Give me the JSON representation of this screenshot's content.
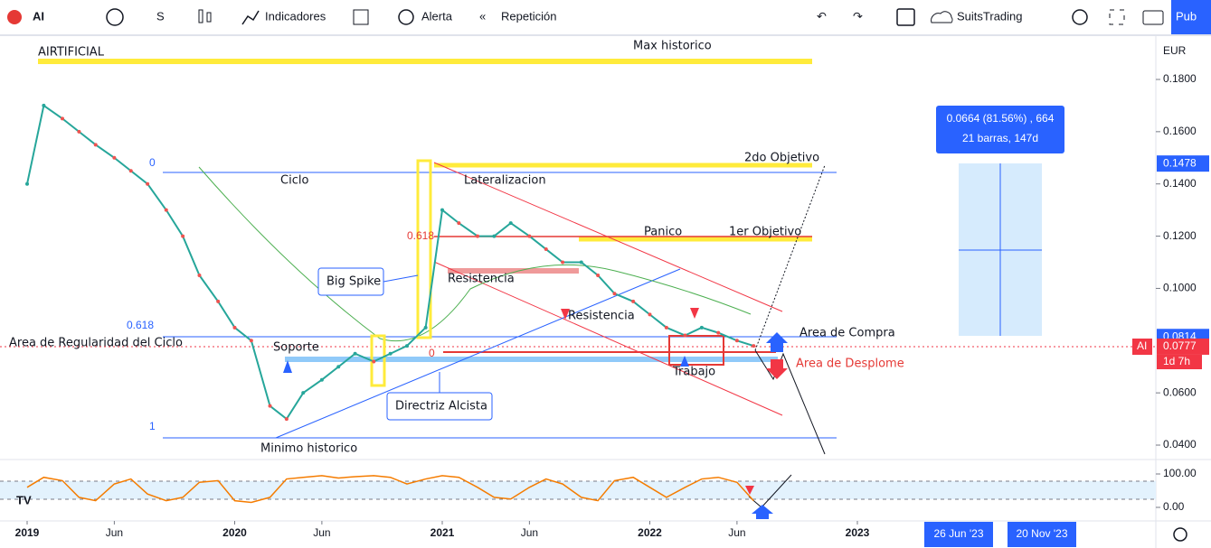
{
  "toolbar": {
    "symbol": "AI",
    "interval": "S",
    "indicators": "Indicadores",
    "alert": "Alerta",
    "replay": "Repetición",
    "layout": "SuitsTrading",
    "publish": "Pub"
  },
  "chart": {
    "currency": "EUR",
    "yticks": [
      {
        "value": 0.18,
        "label": "0.1800"
      },
      {
        "value": 0.16,
        "label": "0.1600"
      },
      {
        "value": 0.14,
        "label": "0.1400"
      },
      {
        "value": 0.12,
        "label": "0.1200"
      },
      {
        "value": 0.1,
        "label": "0.1000"
      },
      {
        "value": 0.06,
        "label": "0.0600"
      },
      {
        "value": 0.04,
        "label": "0.0400"
      }
    ],
    "price_tags": [
      {
        "value": 0.1478,
        "color": "#2962ff"
      },
      {
        "value": 0.0814,
        "color": "#2962ff"
      },
      {
        "value": 0.0777,
        "color": "#f23645"
      }
    ],
    "symbol_tag": "AI",
    "countdown": "1d 7h",
    "osc_ticks": [
      {
        "value": 100,
        "label": "100.00"
      },
      {
        "value": 0,
        "label": "0.00"
      }
    ],
    "xticks": [
      {
        "value": 2019,
        "label": "2019"
      },
      {
        "value": 2019.42,
        "label": "Jun"
      },
      {
        "value": 2020,
        "label": "2020"
      },
      {
        "value": 2020.42,
        "label": "Jun"
      },
      {
        "value": 2021,
        "label": "2021"
      },
      {
        "value": 2021.42,
        "label": "Jun"
      },
      {
        "value": 2022,
        "label": "2022"
      },
      {
        "value": 2022.42,
        "label": "Jun"
      },
      {
        "value": 2023,
        "label": "2023"
      }
    ],
    "date_tags": [
      "26 Jun '23",
      "20 Nov '23"
    ],
    "price": {
      "color": "#26a69a",
      "x": [
        2019,
        2019.08,
        2019.17,
        2019.25,
        2019.33,
        2019.42,
        2019.5,
        2019.58,
        2019.67,
        2019.75,
        2019.83,
        2019.92,
        2020,
        2020.08,
        2020.17,
        2020.25,
        2020.33,
        2020.42,
        2020.5,
        2020.58,
        2020.67,
        2020.75,
        2020.83,
        2020.92,
        2021,
        2021.08,
        2021.17,
        2021.25,
        2021.33,
        2021.42,
        2021.5,
        2021.58,
        2021.67,
        2021.75,
        2021.83,
        2021.92,
        2022,
        2022.08,
        2022.17,
        2022.25,
        2022.33,
        2022.42,
        2022.5
      ],
      "values": [
        0.14,
        0.17,
        0.165,
        0.16,
        0.155,
        0.15,
        0.145,
        0.14,
        0.13,
        0.12,
        0.105,
        0.095,
        0.085,
        0.08,
        0.055,
        0.05,
        0.06,
        0.065,
        0.07,
        0.075,
        0.072,
        0.075,
        0.078,
        0.085,
        0.13,
        0.125,
        0.12,
        0.12,
        0.125,
        0.12,
        0.115,
        0.11,
        0.11,
        0.105,
        0.098,
        0.095,
        0.09,
        0.085,
        0.082,
        0.085,
        0.083,
        0.08,
        0.078
      ]
    },
    "oscillator": {
      "color": "#f57c00",
      "values": [
        60,
        90,
        80,
        30,
        20,
        70,
        85,
        40,
        20,
        30,
        75,
        80,
        20,
        15,
        30,
        85,
        90,
        95,
        88,
        92,
        95,
        90,
        70,
        85,
        95,
        90,
        60,
        30,
        25,
        60,
        85,
        70,
        30,
        20,
        80,
        90,
        60,
        30,
        60,
        85,
        90,
        75,
        20
      ]
    },
    "annotations": {
      "name": "AIRTIFICIAL",
      "max": "Max historico",
      "ciclo": "Ciclo",
      "lateral": "Lateralizacion",
      "obj2": "2do Objetivo",
      "panico": "Panico",
      "obj1": "1er Objetivo",
      "resist1": "Resistencia",
      "resist2": "Resistencia",
      "bigspike": "Big Spike",
      "regularidad": "Area de Regularidad del Ciclo",
      "soporte": "Soporte",
      "compra": "Area de Compra",
      "desplome": "Area de Desplome",
      "trabajo": "Trabajo",
      "directriz": "Directriz Alcista",
      "minimo": "Minimo historico",
      "fib0": "0",
      "fib618": "0.618",
      "fib1": "1",
      "fib618b": "0.618",
      "fib0b": "0"
    },
    "measure": {
      "line1": "0.0664 (81.56%) , 664",
      "line2": "21 barras, 147d"
    }
  }
}
